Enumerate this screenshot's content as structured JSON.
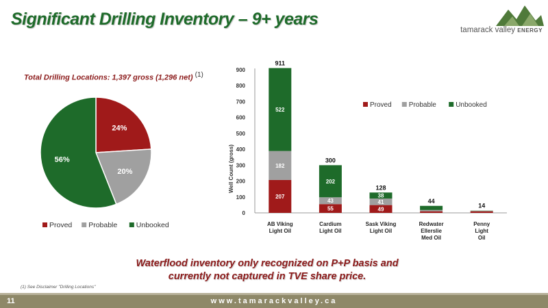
{
  "page": {
    "title": "Significant Drilling Inventory – 9+ years",
    "subtitle": "Total Drilling Locations:  1,397 gross (1,296 net)",
    "subtitle_sup": "(1)",
    "waterflood_line1": "Waterflood inventory only recognized on P+P basis and",
    "waterflood_line2": "currently not captured in TVE share price.",
    "footnote": "(1) See Disclaimer \"Drilling Locations\"",
    "page_number": "11",
    "website": "www.tamarackvalley.ca"
  },
  "logo": {
    "name": "tamarack valley",
    "suffix": "ENERGY"
  },
  "colors": {
    "proved": "#a01a1a",
    "probable": "#a0a0a0",
    "unbooked": "#1e6b2a",
    "title": "#1e6b2a",
    "accent": "#8b1a1a",
    "footer": "#8e8868"
  },
  "chart_data": [
    {
      "type": "pie",
      "categories": [
        "Proved",
        "Probable",
        "Unbooked"
      ],
      "values": [
        24,
        20,
        56
      ],
      "labels": [
        "24%",
        "20%",
        "56%"
      ],
      "legend_position": "bottom"
    },
    {
      "type": "bar",
      "stacked": true,
      "categories": [
        "AB Viking\nLight Oil",
        "Cardium\nLight Oil",
        "Sask Viking\nLight Oil",
        "Redwater\nEllerslie\nMed Oil",
        "Penny\nLight\nOil"
      ],
      "series": [
        {
          "name": "Proved",
          "values": [
            207,
            55,
            49,
            10,
            10
          ],
          "labels": [
            "207",
            "55",
            "49",
            "",
            ""
          ]
        },
        {
          "name": "Probable",
          "values": [
            182,
            43,
            41,
            8,
            2
          ],
          "labels": [
            "182",
            "43",
            "41",
            "",
            ""
          ]
        },
        {
          "name": "Unbooked",
          "values": [
            522,
            202,
            38,
            26,
            2
          ],
          "labels": [
            "522",
            "202",
            "38",
            "",
            ""
          ]
        }
      ],
      "totals": [
        "911",
        "300",
        "128",
        "44",
        "14"
      ],
      "ylabel": "Well Count (gross)",
      "ylim": [
        0,
        900
      ],
      "yticks": [
        "0",
        "100",
        "200",
        "300",
        "400",
        "500",
        "600",
        "700",
        "800",
        "900"
      ],
      "grid": false,
      "legend_position": "top-right"
    }
  ]
}
